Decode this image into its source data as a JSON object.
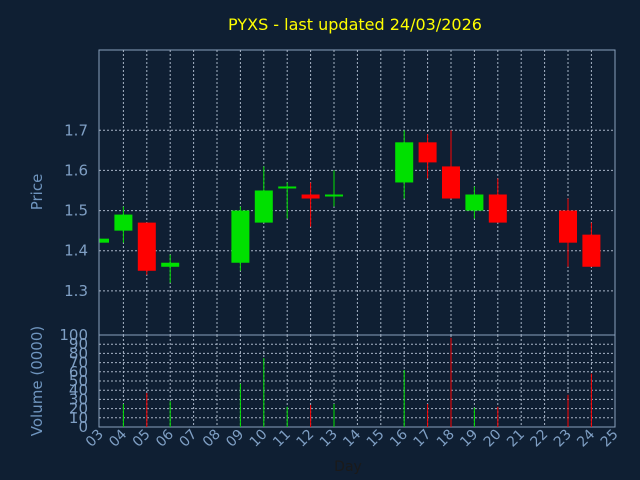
{
  "chart_data": {
    "type": "candlestick",
    "title": "PYXS - last updated 24/03/2026",
    "xlabel": "Day",
    "x_ticks": [
      "03",
      "04",
      "05",
      "06",
      "07",
      "08",
      "09",
      "10",
      "11",
      "12",
      "13",
      "14",
      "15",
      "16",
      "17",
      "18",
      "19",
      "20",
      "21",
      "22",
      "23",
      "24",
      "25"
    ],
    "grid": true,
    "colors": {
      "background": "#0f1f33",
      "plot_bg": "#0f1f33",
      "axis": "#8aa0bd",
      "grid": "#a7b4c6",
      "title": "#ffff00",
      "label": "#6f95bf",
      "tick": "#7f9fc4",
      "up": "#00e000",
      "down": "#ff0000"
    },
    "price": {
      "ylabel": "Price",
      "ylim": [
        1.19,
        1.9
      ],
      "y_ticks": [
        1.3,
        1.4,
        1.5,
        1.6,
        1.7
      ],
      "candles": [
        {
          "day": "03",
          "open": 1.42,
          "high": 1.43,
          "low": 1.42,
          "close": 1.43
        },
        {
          "day": "04",
          "open": 1.45,
          "high": 1.51,
          "low": 1.42,
          "close": 1.49
        },
        {
          "day": "05",
          "open": 1.47,
          "high": 1.47,
          "low": 1.34,
          "close": 1.35
        },
        {
          "day": "06",
          "open": 1.36,
          "high": 1.39,
          "low": 1.32,
          "close": 1.37
        },
        {
          "day": "09",
          "open": 1.37,
          "high": 1.51,
          "low": 1.35,
          "close": 1.5
        },
        {
          "day": "10",
          "open": 1.47,
          "high": 1.61,
          "low": 1.47,
          "close": 1.55
        },
        {
          "day": "11",
          "open": 1.56,
          "high": 1.57,
          "low": 1.48,
          "close": 1.56
        },
        {
          "day": "12",
          "open": 1.54,
          "high": 1.57,
          "low": 1.46,
          "close": 1.53
        },
        {
          "day": "13",
          "open": 1.54,
          "high": 1.6,
          "low": 1.51,
          "close": 1.54
        },
        {
          "day": "16",
          "open": 1.57,
          "high": 1.7,
          "low": 1.53,
          "close": 1.67
        },
        {
          "day": "17",
          "open": 1.67,
          "high": 1.69,
          "low": 1.58,
          "close": 1.62
        },
        {
          "day": "18",
          "open": 1.61,
          "high": 1.7,
          "low": 1.53,
          "close": 1.53
        },
        {
          "day": "19",
          "open": 1.5,
          "high": 1.56,
          "low": 1.48,
          "close": 1.54
        },
        {
          "day": "20",
          "open": 1.54,
          "high": 1.58,
          "low": 1.47,
          "close": 1.47
        },
        {
          "day": "23",
          "open": 1.5,
          "high": 1.53,
          "low": 1.36,
          "close": 1.42
        },
        {
          "day": "24",
          "open": 1.44,
          "high": 1.47,
          "low": 1.36,
          "close": 1.36
        }
      ]
    },
    "volume": {
      "ylabel": "Volume (0000)",
      "ylim": [
        0,
        100
      ],
      "y_ticks": [
        0,
        10,
        20,
        30,
        40,
        50,
        60,
        70,
        80,
        90,
        100
      ],
      "bars": [
        {
          "day": "04",
          "value": 25,
          "dir": "up"
        },
        {
          "day": "05",
          "value": 37,
          "dir": "down"
        },
        {
          "day": "06",
          "value": 28,
          "dir": "up"
        },
        {
          "day": "09",
          "value": 47,
          "dir": "up"
        },
        {
          "day": "10",
          "value": 75,
          "dir": "up"
        },
        {
          "day": "11",
          "value": 22,
          "dir": "up"
        },
        {
          "day": "12",
          "value": 24,
          "dir": "down"
        },
        {
          "day": "13",
          "value": 25,
          "dir": "up"
        },
        {
          "day": "16",
          "value": 62,
          "dir": "up"
        },
        {
          "day": "17",
          "value": 25,
          "dir": "down"
        },
        {
          "day": "18",
          "value": 97,
          "dir": "down"
        },
        {
          "day": "19",
          "value": 21,
          "dir": "up"
        },
        {
          "day": "20",
          "value": 22,
          "dir": "down"
        },
        {
          "day": "23",
          "value": 35,
          "dir": "down"
        },
        {
          "day": "24",
          "value": 58,
          "dir": "down"
        }
      ]
    }
  }
}
